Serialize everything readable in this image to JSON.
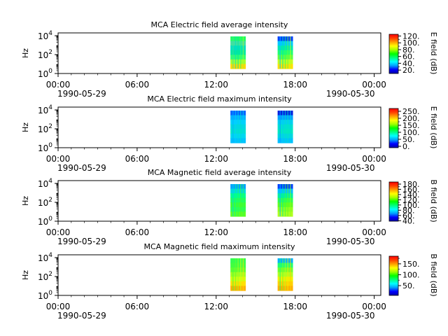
{
  "colors": {
    "background": "#ffffff",
    "axis": "#000000",
    "colorbar": [
      "#0000aa",
      "#0000ff",
      "#00a0ff",
      "#00ffff",
      "#00ff80",
      "#00ff00",
      "#a0ff00",
      "#ffff00",
      "#ffa000",
      "#ff4000",
      "#ff0000"
    ]
  },
  "chart_data": [
    {
      "type": "heatmap",
      "title": "MCA  Electric field average intensity",
      "ylabel": "Hz",
      "yscale": "log",
      "yticks": [
        "10^0",
        "10^2",
        "10^4"
      ],
      "xticks": [
        "00:00",
        "06:00",
        "12:00",
        "18:00",
        "00:00"
      ],
      "date_labels": [
        "1990-05-29",
        "1990-05-30"
      ],
      "colorbar_label": "E field (dB)",
      "colorbar_ticks": [
        "20.",
        "40.",
        "60.",
        "80.",
        "100.",
        "120."
      ],
      "colorbar_range": [
        10,
        125
      ],
      "data_intervals": [
        {
          "start": "1990-05-29 13:05",
          "end": "1990-05-29 14:15",
          "colors": [
            "#20ff60",
            "#40e0a0",
            "#00e0c0",
            "#00e8a0",
            "#30ff70",
            "#a0ff30",
            "#ffd800"
          ]
        },
        {
          "start": "1990-05-29 16:40",
          "end": "1990-05-29 17:50",
          "colors": [
            "#0040ff",
            "#00c8ff",
            "#00e8b0",
            "#20ff70",
            "#60ff40",
            "#c0ff20",
            "#ffe000"
          ]
        }
      ]
    },
    {
      "type": "heatmap",
      "title": "MCA  Electric field maximum intensity",
      "ylabel": "Hz",
      "yscale": "log",
      "yticks": [
        "10^0",
        "10^2",
        "10^4"
      ],
      "xticks": [
        "00:00",
        "06:00",
        "12:00",
        "18:00",
        "00:00"
      ],
      "date_labels": [
        "1990-05-29",
        "1990-05-30"
      ],
      "colorbar_label": "E field (dB)",
      "colorbar_ticks": [
        "0.",
        "50.",
        "100.",
        "150.",
        "200.",
        "250."
      ],
      "colorbar_range": [
        -10,
        270
      ],
      "data_intervals": [
        {
          "start": "1990-05-29 13:05",
          "end": "1990-05-29 14:15",
          "colors": [
            "#0060ff",
            "#00b0ff",
            "#00d0ff",
            "#00d8e0",
            "#00e0d0",
            "#00d8f0",
            "#00c0ff"
          ]
        },
        {
          "start": "1990-05-29 16:40",
          "end": "1990-05-29 17:50",
          "colors": [
            "#0020e0",
            "#00a0ff",
            "#00d0f0",
            "#00e0d0",
            "#00e8c0",
            "#00d8e0",
            "#00c0ff"
          ]
        }
      ]
    },
    {
      "type": "heatmap",
      "title": "MCA  Magnetic field average intensity",
      "ylabel": "Hz",
      "yscale": "log",
      "yticks": [
        "10^0",
        "10^2",
        "10^4"
      ],
      "xticks": [
        "00:00",
        "06:00",
        "12:00",
        "18:00",
        "00:00"
      ],
      "date_labels": [
        "1990-05-29",
        "1990-05-30"
      ],
      "colorbar_label": "B field (dB)",
      "colorbar_ticks": [
        "40.",
        "60.",
        "80.",
        "100.",
        "120.",
        "140.",
        "160.",
        "180."
      ],
      "colorbar_range": [
        38,
        188
      ],
      "data_intervals": [
        {
          "start": "1990-05-29 13:05",
          "end": "1990-05-29 14:15",
          "colors": [
            "#00a0ff",
            "#00d8e0",
            "#00ff90",
            "#20ff60",
            "#40ff30",
            "#30ff50",
            "#60ff20"
          ]
        },
        {
          "start": "1990-05-29 16:40",
          "end": "1990-05-29 17:50",
          "colors": [
            "#0040ff",
            "#00c0ff",
            "#00f0a0",
            "#30ff50",
            "#60ff20",
            "#90ff20",
            "#b0ff20"
          ]
        }
      ]
    },
    {
      "type": "heatmap",
      "title": "MCA  Magnetic field maximum intensity",
      "ylabel": "Hz",
      "yscale": "log",
      "yticks": [
        "10^0",
        "10^2",
        "10^4"
      ],
      "xticks": [
        "00:00",
        "06:00",
        "12:00",
        "18:00",
        "00:00"
      ],
      "date_labels": [
        "1990-05-29",
        "1990-05-30"
      ],
      "colorbar_label": "B field (dB)",
      "colorbar_ticks": [
        "50.",
        "100.",
        "150."
      ],
      "colorbar_range": [
        5,
        185
      ],
      "data_intervals": [
        {
          "start": "1990-05-29 13:05",
          "end": "1990-05-29 14:15",
          "colors": [
            "#30ff50",
            "#40ff40",
            "#60ff30",
            "#a0ff20",
            "#d0ff10",
            "#ffe000",
            "#ffb000"
          ]
        },
        {
          "start": "1990-05-29 16:40",
          "end": "1990-05-29 17:50",
          "colors": [
            "#00b0ff",
            "#20ff70",
            "#70ff30",
            "#b0ff20",
            "#f0f000",
            "#ffd000",
            "#ffb000"
          ]
        }
      ]
    }
  ]
}
